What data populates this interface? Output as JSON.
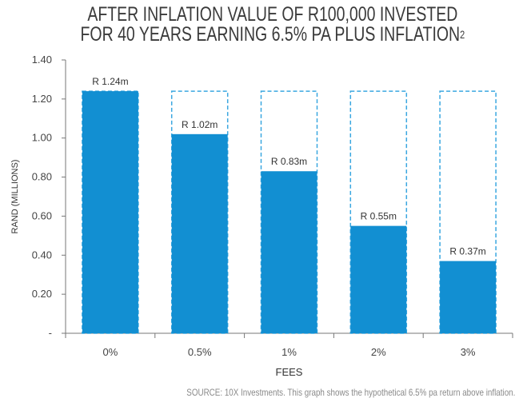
{
  "chart_data": {
    "type": "bar",
    "title_line1": "AFTER INFLATION VALUE OF R100,000 INVESTED",
    "title_line2": "FOR 40 YEARS EARNING 6.5% PA PLUS INFLATION",
    "title_sup": "2",
    "xlabel": "FEES",
    "ylabel": "RAND (MILLIONS)",
    "categories": [
      "0%",
      "0.5%",
      "1%",
      "2%",
      "3%"
    ],
    "values": [
      1.24,
      1.02,
      0.83,
      0.55,
      0.37
    ],
    "data_labels": [
      "R 1.24m",
      "R 1.02m",
      "R 0.83m",
      "R 0.55m",
      "R 0.37m"
    ],
    "reference_value": 1.24,
    "ylim": [
      0,
      1.4
    ],
    "yticks": [
      "-",
      "0.20",
      "0.40",
      "0.60",
      "0.80",
      "1.00",
      "1.20",
      "1.40"
    ],
    "grid": false,
    "bar_color": "#128fd2",
    "outline_color": "#3aa7e0",
    "source": "SOURCE: 10X Investments. This graph shows the hypothetical 6.5% pa return above inflation."
  }
}
